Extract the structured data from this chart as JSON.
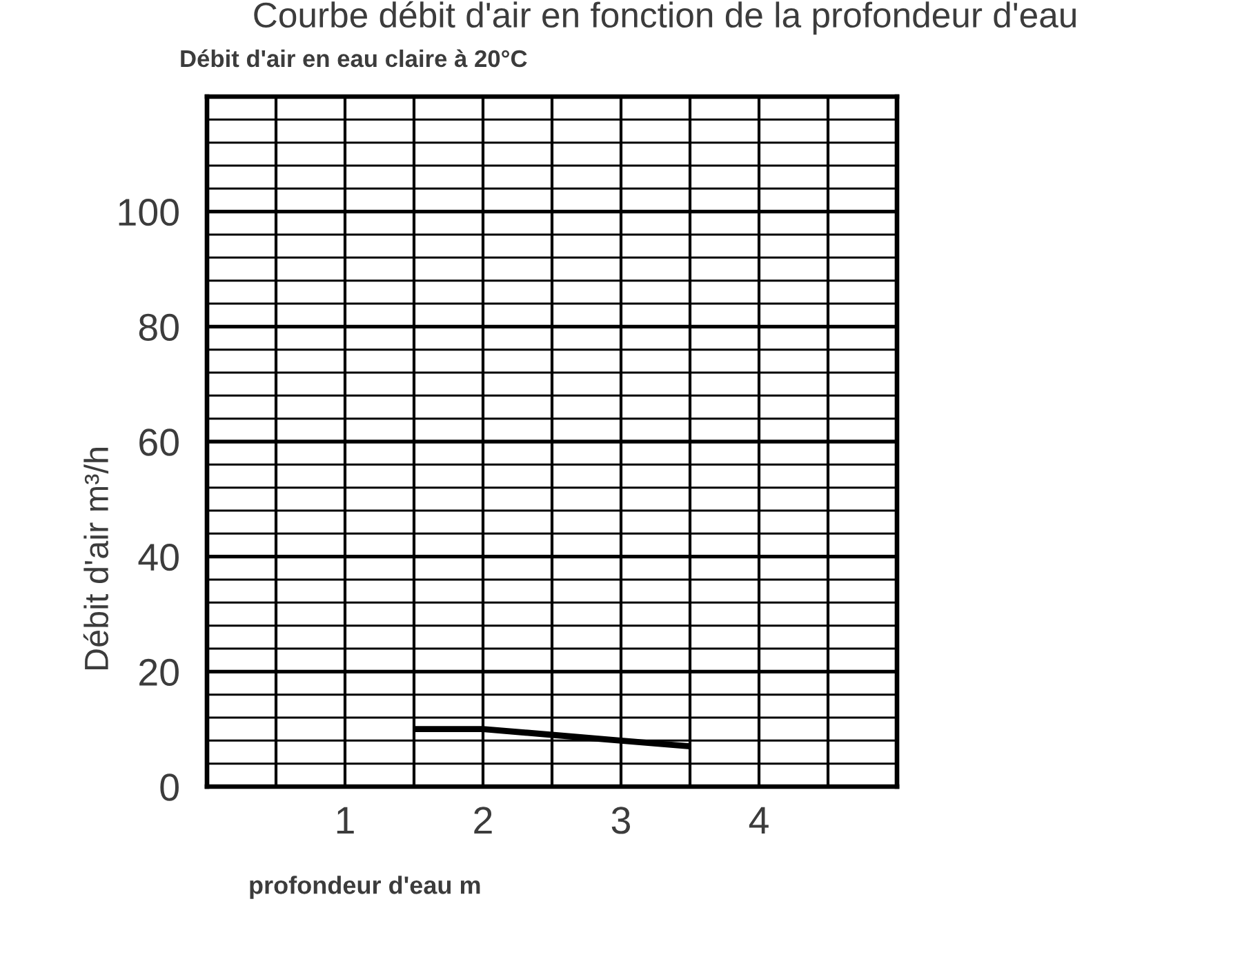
{
  "chart_data": {
    "type": "line",
    "title": "Courbe débit d'air en fonction de la profondeur d'eau",
    "subtitle": "Débit d'air en eau claire à 20°C",
    "xlabel": "profondeur d'eau m",
    "ylabel": "Débit d'air m³/h",
    "x": [
      1.5,
      2,
      2.5,
      3,
      3.5
    ],
    "series": [
      {
        "color": "#000000",
        "values": [
          10,
          10,
          9,
          8,
          7
        ]
      }
    ],
    "xlim": [
      0,
      5
    ],
    "ylim": [
      0,
      120
    ],
    "xticks": [
      {
        "value": 0,
        "label": null
      },
      {
        "value": 0.5,
        "label": null
      },
      1,
      {
        "value": 1.5,
        "label": null
      },
      2,
      {
        "value": 2.5,
        "label": null
      },
      3,
      {
        "value": 3.5,
        "label": null
      },
      4,
      {
        "value": 4.5,
        "label": null
      },
      {
        "value": 5,
        "label": null
      }
    ],
    "yticks": [
      0,
      {
        "value": 4,
        "label": null
      },
      {
        "value": 8,
        "label": null
      },
      {
        "value": 12,
        "label": null
      },
      {
        "value": 16,
        "label": null
      },
      20,
      {
        "value": 24,
        "label": null
      },
      {
        "value": 28,
        "label": null
      },
      {
        "value": 32,
        "label": null
      },
      {
        "value": 36,
        "label": null
      },
      40,
      {
        "value": 44,
        "label": null
      },
      {
        "value": 48,
        "label": null
      },
      {
        "value": 52,
        "label": null
      },
      {
        "value": 56,
        "label": null
      },
      60,
      {
        "value": 64,
        "label": null
      },
      {
        "value": 68,
        "label": null
      },
      {
        "value": 72,
        "label": null
      },
      {
        "value": 76,
        "label": null
      },
      80,
      {
        "value": 84,
        "label": null
      },
      {
        "value": 88,
        "label": null
      },
      {
        "value": 92,
        "label": null
      },
      {
        "value": 96,
        "label": null
      },
      100,
      {
        "value": 104,
        "label": null
      },
      {
        "value": 108,
        "label": null
      },
      {
        "value": 112,
        "label": null
      },
      {
        "value": 116,
        "label": null
      },
      {
        "value": 120,
        "label": null
      }
    ],
    "grid": true,
    "line_style": "solid",
    "legend": false
  }
}
